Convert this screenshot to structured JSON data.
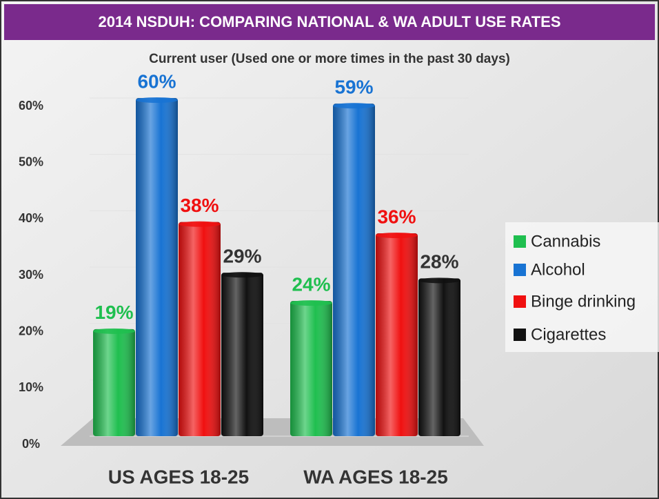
{
  "chart_data": {
    "type": "bar",
    "title": "2014 NSDUH: COMPARING NATIONAL & WA ADULT USE RATES",
    "subtitle": "Current user (Used one or more times in the past 30 days)",
    "categories": [
      "US AGES 18-25",
      "WA AGES 18-25"
    ],
    "series": [
      {
        "name": "Cannabis",
        "color": "#1fbf4f",
        "values": [
          19,
          24
        ],
        "value_labels": [
          "19%",
          "24%"
        ]
      },
      {
        "name": "Alcohol",
        "color": "#1873d3",
        "values": [
          60,
          59
        ],
        "value_labels": [
          "60%",
          "59%"
        ]
      },
      {
        "name": "Binge drinking",
        "color": "#f01010",
        "values": [
          38,
          36
        ],
        "value_labels": [
          "38%",
          "36%"
        ]
      },
      {
        "name": "Cigarettes",
        "color": "#111111",
        "values": [
          29,
          28
        ],
        "value_labels": [
          "29%",
          "28%"
        ]
      }
    ],
    "ylim": [
      0,
      60
    ],
    "yticks": [
      {
        "value": 0,
        "label": "0%"
      },
      {
        "value": 10,
        "label": "10%"
      },
      {
        "value": 20,
        "label": "20%"
      },
      {
        "value": 30,
        "label": "30%"
      },
      {
        "value": 40,
        "label": "40%"
      },
      {
        "value": 50,
        "label": "50%"
      },
      {
        "value": 60,
        "label": "60%"
      }
    ],
    "grid": true,
    "legend": "right"
  }
}
